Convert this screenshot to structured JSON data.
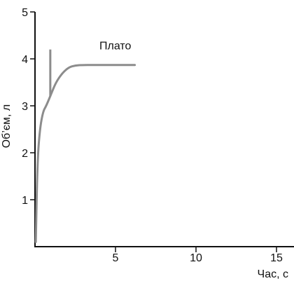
{
  "chart_data": {
    "type": "line",
    "xlabel": "Час, с",
    "ylabel": "Об’єм, л",
    "xlim": [
      0,
      16
    ],
    "ylim": [
      0,
      5
    ],
    "x_ticks": [
      {
        "value": 5,
        "label": "5"
      },
      {
        "value": 10,
        "label": "10"
      },
      {
        "value": 15,
        "label": "15"
      }
    ],
    "y_ticks": [
      {
        "value": 1,
        "label": "1"
      },
      {
        "value": 2,
        "label": "2"
      },
      {
        "value": 3,
        "label": "3"
      },
      {
        "value": 4,
        "label": "4"
      },
      {
        "value": 5,
        "label": "5"
      }
    ],
    "grid": false,
    "series": [
      {
        "color": "#8c8c8c",
        "x": [
          0.05,
          0.15,
          0.3,
          0.5,
          0.7,
          1.0,
          1.3,
          1.7,
          2.1,
          2.5,
          3.0,
          3.5,
          4.5,
          5.5,
          6.2
        ],
        "y": [
          0.1,
          1.8,
          2.5,
          2.88,
          3.0,
          3.25,
          3.5,
          3.7,
          3.82,
          3.86,
          3.87,
          3.87,
          3.87,
          3.87,
          3.87
        ]
      }
    ],
    "spike": {
      "x": 0.95,
      "y_from": 3.2,
      "y_to": 4.2,
      "color": "#8c8c8c"
    },
    "annotations": [
      {
        "text": "Плато",
        "x": 4.0,
        "y": 4.2
      }
    ]
  }
}
